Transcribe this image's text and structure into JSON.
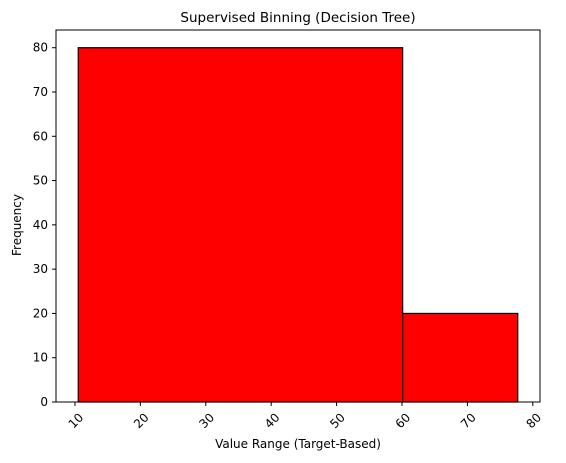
{
  "chart_data": {
    "type": "bar",
    "title": "Supervised Binning (Decision Tree)",
    "xlabel": "Value Range (Target-Based)",
    "ylabel": "Frequency",
    "bins": [
      {
        "start": 10.5,
        "end": 60.1,
        "value": 80
      },
      {
        "start": 60.1,
        "end": 77.7,
        "value": 20
      }
    ],
    "xlim": [
      7.1,
      81.1
    ],
    "ylim": [
      0,
      84
    ],
    "xticks": [
      10,
      20,
      30,
      40,
      50,
      60,
      70,
      80
    ],
    "yticks": [
      0,
      10,
      20,
      30,
      40,
      50,
      60,
      70,
      80
    ],
    "bar_color": "#ff0000",
    "edge_color": "#000000",
    "grid": false,
    "xtick_rotation": -45
  }
}
